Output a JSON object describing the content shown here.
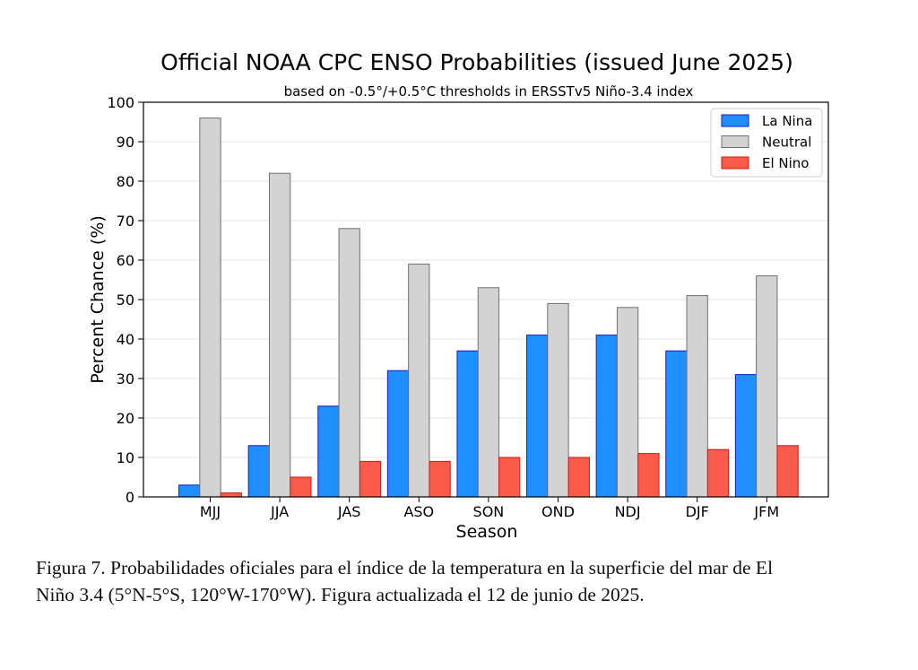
{
  "chart_data": {
    "type": "bar",
    "title": "Official NOAA CPC ENSO Probabilities (issued June 2025)",
    "subtitle": "based on -0.5°/+0.5°C thresholds in ERSSTv5 Niño-3.4 index",
    "xlabel": "Season",
    "ylabel": "Percent Chance (%)",
    "ylim": [
      0,
      100
    ],
    "yticks": [
      0,
      10,
      20,
      30,
      40,
      50,
      60,
      70,
      80,
      90,
      100
    ],
    "grid": true,
    "legend_position": "top-right",
    "categories": [
      "MJJ",
      "JJA",
      "JAS",
      "ASO",
      "SON",
      "OND",
      "NDJ",
      "DJF",
      "JFM"
    ],
    "series": [
      {
        "name": "La Nina",
        "color": "#1f8fff",
        "edge": "#1a1acc",
        "values": [
          3,
          13,
          23,
          32,
          37,
          41,
          41,
          37,
          31
        ]
      },
      {
        "name": "Neutral",
        "color": "#d3d3d3",
        "edge": "#707070",
        "values": [
          96,
          82,
          68,
          59,
          53,
          49,
          48,
          51,
          56
        ]
      },
      {
        "name": "El Nino",
        "color": "#fa5a4a",
        "edge": "#cc1a1a",
        "values": [
          1,
          5,
          9,
          9,
          10,
          10,
          11,
          12,
          13
        ]
      }
    ]
  },
  "caption": {
    "line1": "Figura 7. Probabilidades oficiales para el índice de la temperatura en la superficie del mar de El",
    "line2": "Niño 3.4 (5°N-5°S, 120°W-170°W). Figura actualizada el 12 de junio de 2025."
  }
}
